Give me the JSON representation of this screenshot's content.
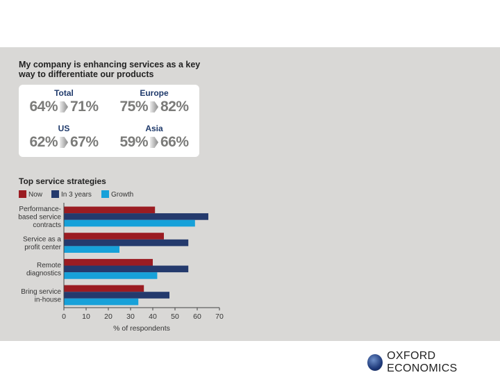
{
  "headline": "My company is enhancing services as a key way to differentiate our products",
  "stats": [
    {
      "label": "Total",
      "now": "64%",
      "future": "71%"
    },
    {
      "label": "Europe",
      "now": "75%",
      "future": "82%"
    },
    {
      "label": "US",
      "now": "62%",
      "future": "67%"
    },
    {
      "label": "Asia",
      "now": "59%",
      "future": "66%"
    }
  ],
  "logo": {
    "text": "OXFORD ECONOMICS"
  },
  "chart_data": {
    "type": "bar",
    "orientation": "horizontal",
    "title": "Top service strategies",
    "xlabel": "% of respondents",
    "xlim": [
      0,
      70
    ],
    "xticks": [
      0,
      10,
      20,
      30,
      40,
      50,
      60,
      70
    ],
    "grid": false,
    "legend_position": "top-left",
    "categories": [
      [
        "Performance-",
        "based service",
        "contracts"
      ],
      [
        "Service as a",
        "profit center"
      ],
      [
        "Remote",
        "diagnostics"
      ],
      [
        "Bring service",
        "in-house"
      ]
    ],
    "series": [
      {
        "name": "Now",
        "color": "#9b1c22",
        "values": [
          41,
          45,
          40,
          36
        ]
      },
      {
        "name": "In 3 years",
        "color": "#243a6d",
        "values": [
          65,
          56,
          56,
          47.5
        ]
      },
      {
        "name": "Growth",
        "color": "#17a1d9",
        "values": [
          59,
          25,
          42,
          33.5
        ]
      }
    ]
  }
}
